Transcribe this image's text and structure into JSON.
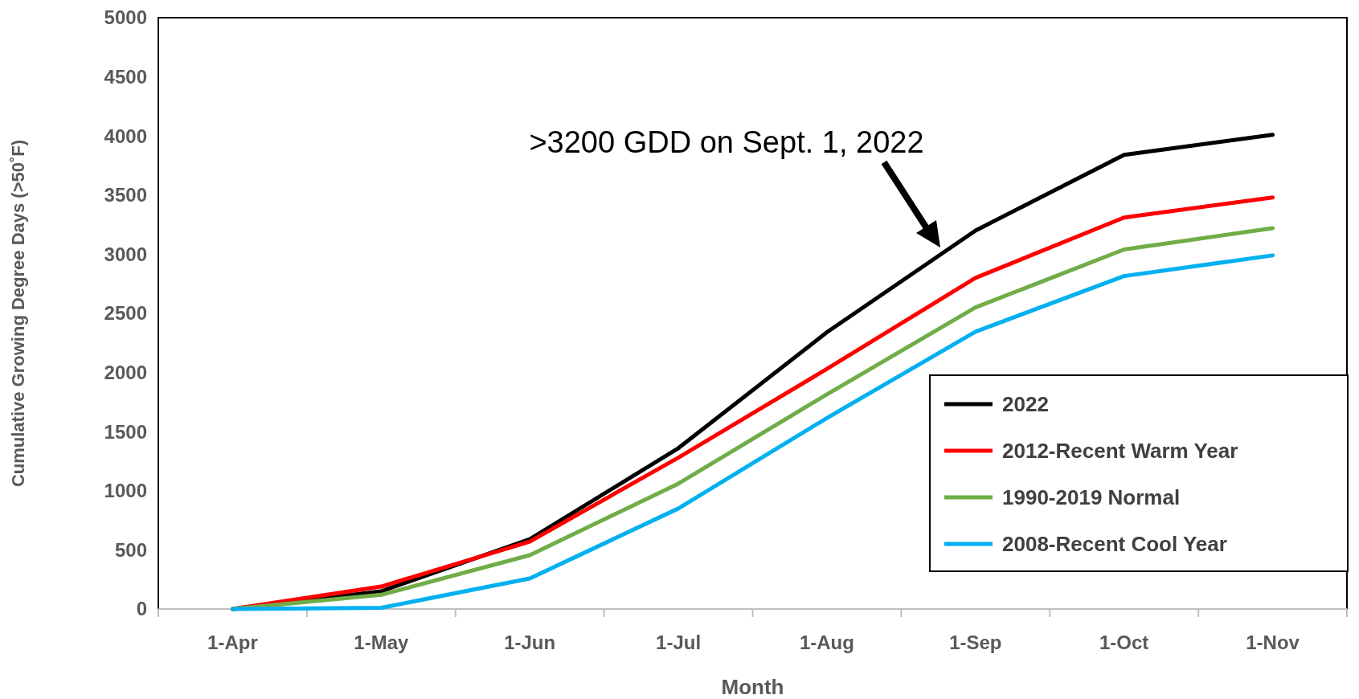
{
  "chart_data": {
    "type": "line",
    "xlabel": "Month",
    "ylabel": "Cumulative Growing Degree Days (>50˚F)",
    "categories": [
      "1-Apr",
      "1-May",
      "1-Jun",
      "1-Jul",
      "1-Aug",
      "1-Sep",
      "1-Oct",
      "1-Nov"
    ],
    "series": [
      {
        "name": "2022",
        "color": "#000000",
        "values": [
          0,
          150,
          590,
          1360,
          2340,
          3200,
          3840,
          4010
        ]
      },
      {
        "name": "2012-Recent Warm Year",
        "color": "#ff0000",
        "values": [
          0,
          190,
          570,
          1280,
          2030,
          2800,
          3310,
          3480
        ]
      },
      {
        "name": "1990-2019 Normal",
        "color": "#70ad47",
        "values": [
          0,
          120,
          455,
          1060,
          1815,
          2550,
          3040,
          3220
        ]
      },
      {
        "name": "2008-Recent Cool Year",
        "color": "#00b0f0",
        "values": [
          0,
          10,
          258,
          850,
          1615,
          2345,
          2815,
          2990
        ]
      }
    ],
    "ylim": [
      0,
      5000
    ],
    "yticks": [
      0,
      500,
      1000,
      1500,
      2000,
      2500,
      3000,
      3500,
      4000,
      4500,
      5000
    ],
    "annotations": [
      ">3200 GDD on Sept. 1, 2022"
    ],
    "grid": false,
    "legend": "bottom right",
    "marker": "none",
    "line_style": "solid"
  }
}
